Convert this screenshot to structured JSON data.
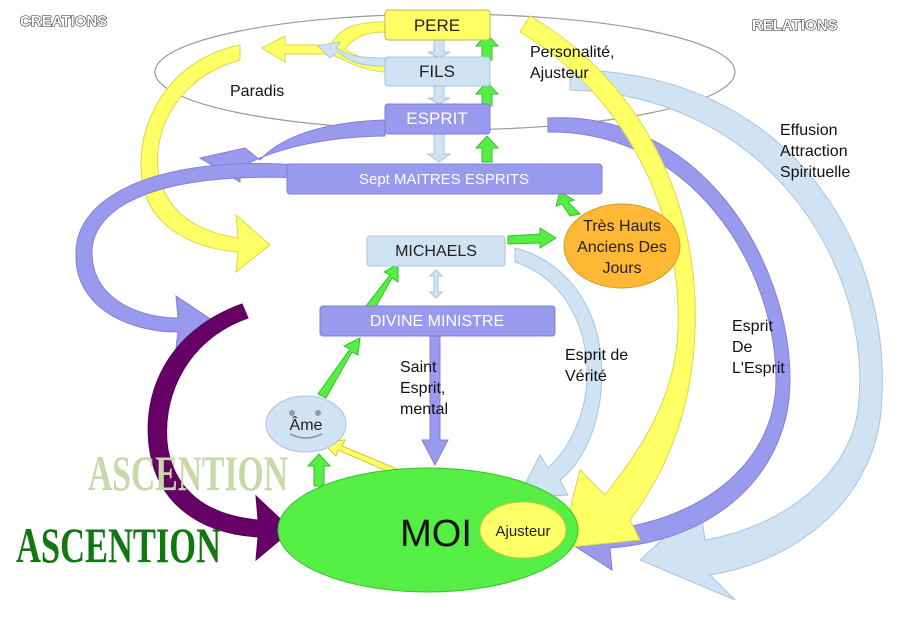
{
  "headers": {
    "left": "CREATIONS",
    "right": "RELATIONS"
  },
  "nodes": {
    "pere": "PERE",
    "fils": "FILS",
    "esprit": "ESPRIT",
    "sept": "Sept MAITRES ESPRITS",
    "michaels": "MICHAELS",
    "divine": "DIVINE MINISTRE",
    "tres_hauts": [
      "Très Hauts",
      "Anciens Des",
      "Jours"
    ],
    "ame": "Âme",
    "moi": "MOI",
    "ajusteur": "Ajusteur"
  },
  "labels": {
    "paradis": "Paradis",
    "personalite": [
      "Personalité,",
      "Ajusteur"
    ],
    "effusion": [
      "Effusion",
      "Attraction",
      "Spirituelle"
    ],
    "saint_esprit": [
      "Saint",
      "Esprit,",
      "mental"
    ],
    "esprit_verite": [
      "Esprit de",
      "Vérité"
    ],
    "esprit_de_esprit": [
      "Esprit",
      "De",
      "L'Esprit"
    ],
    "ascention_shadow": "ASCENTION",
    "ascention": "ASCENTION"
  },
  "colors": {
    "yellow": "#ffff66",
    "light_blue": "#cfe3f3",
    "lavender": "#9999ee",
    "green": "#55ee44",
    "orange": "#ffb833",
    "purple": "#660066",
    "dark_green": "#117711"
  }
}
